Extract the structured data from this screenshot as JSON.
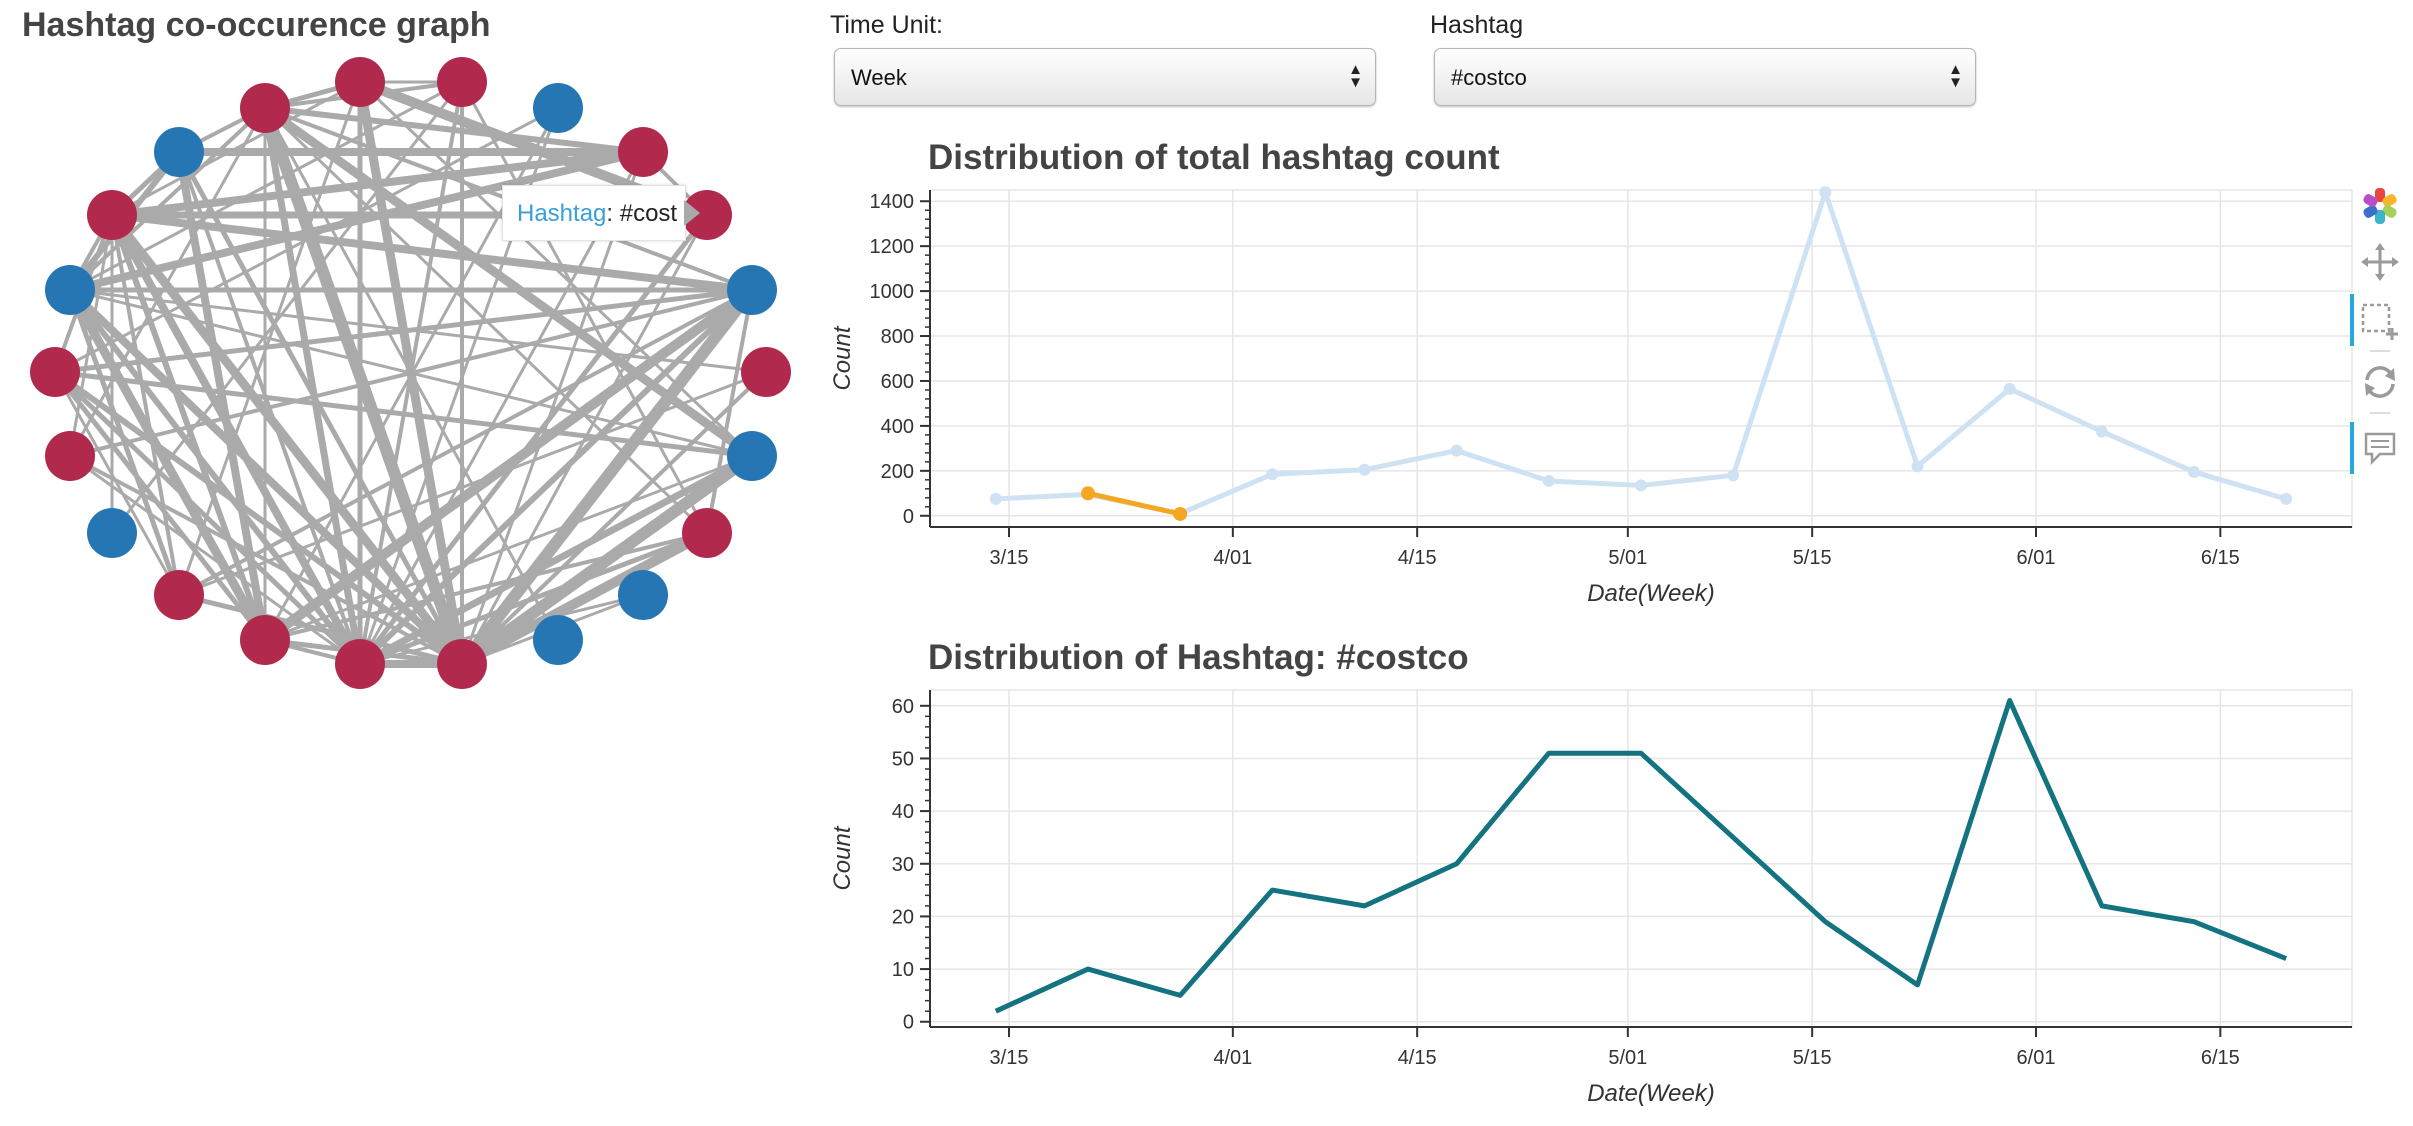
{
  "network": {
    "title": "Hashtag co-occurence graph",
    "colors": {
      "red": "#b12a4e",
      "blue": "#2676b4",
      "edge": "#aaaaaa"
    },
    "tooltip": {
      "key": "Hashtag",
      "value": "#cost"
    }
  },
  "controls": {
    "time_unit": {
      "label": "Time Unit:",
      "value": "Week"
    },
    "hashtag": {
      "label": "Hashtag",
      "value": "#costco"
    }
  },
  "toolbar": {
    "tools": [
      "bokeh-logo-icon",
      "pan-icon",
      "box-zoom-icon",
      "reset-icon",
      "hover-icon"
    ]
  },
  "chart_data": [
    {
      "type": "line",
      "title": "Distribution of total hashtag count",
      "xlabel": "Date(Week)",
      "ylabel": "Count",
      "x_ticks": [
        "3/15",
        "4/01",
        "4/15",
        "5/01",
        "5/15",
        "6/01",
        "6/15"
      ],
      "y_ticks": [
        0,
        200,
        400,
        600,
        800,
        1000,
        1200,
        1400
      ],
      "ylim": [
        -50,
        1450
      ],
      "xlim": [
        "2015-03-09",
        "2015-06-25"
      ],
      "grid": true,
      "series": [
        {
          "color": "#cfe2f3",
          "x": [
            "2015-03-14",
            "2015-03-21",
            "2015-03-28",
            "2015-04-04",
            "2015-04-11",
            "2015-04-18",
            "2015-04-25",
            "2015-05-02",
            "2015-05-09",
            "2015-05-16",
            "2015-05-23",
            "2015-05-30",
            "2015-06-06",
            "2015-06-13",
            "2015-06-20"
          ],
          "y": [
            75,
            95,
            10,
            185,
            205,
            290,
            155,
            135,
            180,
            1440,
            220,
            565,
            375,
            195,
            75
          ]
        },
        {
          "color": "#f5a623",
          "x": [
            "2015-03-21",
            "2015-03-28"
          ],
          "y": [
            100,
            8
          ]
        }
      ]
    },
    {
      "type": "line",
      "title": "Distribution of Hashtag: #costco",
      "xlabel": "Date(Week)",
      "ylabel": "Count",
      "x_ticks": [
        "3/15",
        "4/01",
        "4/15",
        "5/01",
        "5/15",
        "6/01",
        "6/15"
      ],
      "y_ticks": [
        0,
        10,
        20,
        30,
        40,
        50,
        60
      ],
      "ylim": [
        -1,
        63
      ],
      "xlim": [
        "2015-03-09",
        "2015-06-25"
      ],
      "grid": true,
      "series": [
        {
          "color": "#137380",
          "x": [
            "2015-03-14",
            "2015-03-21",
            "2015-03-28",
            "2015-04-04",
            "2015-04-11",
            "2015-04-18",
            "2015-04-25",
            "2015-05-02",
            "2015-05-09",
            "2015-05-16",
            "2015-05-23",
            "2015-05-30",
            "2015-06-06",
            "2015-06-13",
            "2015-06-20"
          ],
          "y": [
            2,
            10,
            5,
            25,
            22,
            30,
            51,
            51,
            35,
            19,
            7,
            61,
            22,
            19,
            12
          ]
        }
      ]
    }
  ]
}
